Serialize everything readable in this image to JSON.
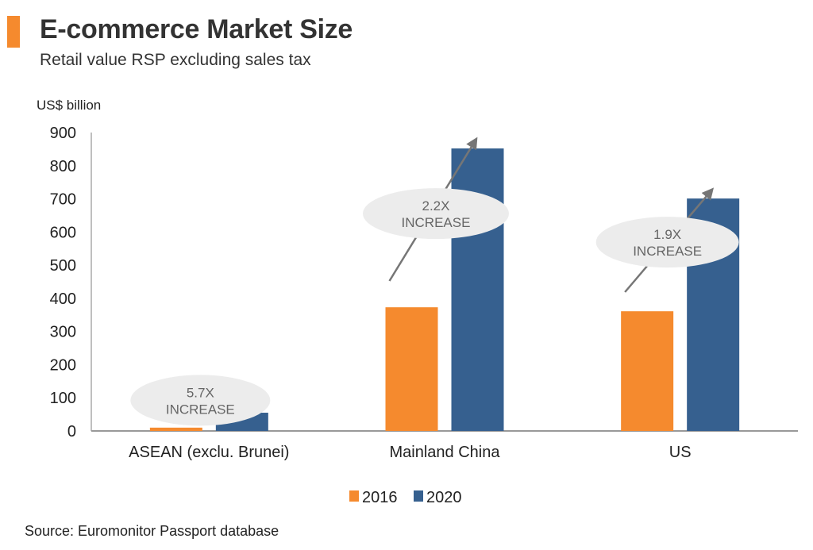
{
  "title": "E-commerce Market Size",
  "subtitle": "Retail value RSP excluding sales tax",
  "source": "Source: Euromonitor Passport database",
  "chart_data": {
    "type": "bar",
    "title": "E-commerce Market Size",
    "subtitle": "Retail value RSP excluding sales tax",
    "ylabel": "US$ billion",
    "xlabel": "",
    "categories": [
      "ASEAN (exclu. Brunei)",
      "Mainland China",
      "US"
    ],
    "series": [
      {
        "name": "2016",
        "color": "#f58a2e",
        "values": [
          10,
          373,
          361
        ]
      },
      {
        "name": "2020",
        "color": "#36608f",
        "values": [
          55,
          852,
          701
        ]
      }
    ],
    "ylim": [
      0,
      900
    ],
    "yticks": [
      0,
      100,
      200,
      300,
      400,
      500,
      600,
      700,
      800,
      900
    ],
    "grid": false,
    "legend": "bottom",
    "annotations": [
      {
        "category": "ASEAN (exclu. Brunei)",
        "line1": "5.7X",
        "line2": "INCREASE"
      },
      {
        "category": "Mainland China",
        "line1": "2.2X",
        "line2": "INCREASE"
      },
      {
        "category": "US",
        "line1": "1.9X",
        "line2": "INCREASE"
      }
    ]
  }
}
